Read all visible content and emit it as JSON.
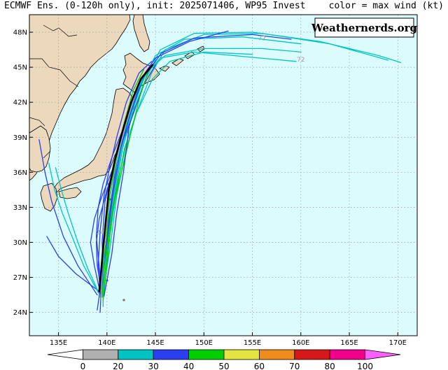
{
  "header": {
    "title": "ECMWF Ens. (0-120h only), init: 2025071406, WP95 Invest",
    "right_note": "color = max wind (kt)"
  },
  "watermark": "Weathernerds.org",
  "map": {
    "lon_range": [
      132,
      172
    ],
    "lat_range": [
      22,
      49.5
    ],
    "ocean_color": "#dcfbfd",
    "land_color": "#ecd8bd",
    "lon_ticks": [
      {
        "value": 135,
        "label": "135E"
      },
      {
        "value": 140,
        "label": "140E"
      },
      {
        "value": 145,
        "label": "145E"
      },
      {
        "value": 150,
        "label": "150E"
      },
      {
        "value": 155,
        "label": "155E"
      },
      {
        "value": 160,
        "label": "160E"
      },
      {
        "value": 165,
        "label": "165E"
      },
      {
        "value": 170,
        "label": "170E"
      }
    ],
    "lat_ticks": [
      {
        "value": 24,
        "label": "24N"
      },
      {
        "value": 27,
        "label": "27N"
      },
      {
        "value": 30,
        "label": "30N"
      },
      {
        "value": 33,
        "label": "33N"
      },
      {
        "value": 36,
        "label": "36N"
      },
      {
        "value": 39,
        "label": "39N"
      },
      {
        "value": 42,
        "label": "42N"
      },
      {
        "value": 45,
        "label": "45N"
      },
      {
        "value": 48,
        "label": "48N"
      }
    ],
    "hour_labels": [
      {
        "text": "72",
        "lon": 156.0,
        "lat": 47.3
      },
      {
        "text": "72",
        "lon": 160.0,
        "lat": 45.5
      },
      {
        "text": "24",
        "lon": 139.3,
        "lat": 30.7
      }
    ]
  },
  "colorbar": {
    "labels": [
      "0",
      "20",
      "30",
      "40",
      "50",
      "60",
      "70",
      "80",
      "100"
    ],
    "colors": [
      "#b0b0b0",
      "#00c4c4",
      "#2a3ff0",
      "#00d000",
      "#e4e440",
      "#f08c1c",
      "#d81818",
      "#f0008c",
      "#ff60ff"
    ]
  },
  "tracks": [
    {
      "color": "#00c4c4",
      "points": [
        [
          139.5,
          25.5
        ],
        [
          140.2,
          30
        ],
        [
          140.8,
          34
        ],
        [
          141.6,
          38
        ],
        [
          142.6,
          41
        ],
        [
          144.0,
          44
        ],
        [
          145.5,
          46.5
        ],
        [
          149,
          47.9
        ],
        [
          155,
          48.0
        ],
        [
          162,
          47.2
        ],
        [
          168,
          46.0
        ],
        [
          170.3,
          45.4
        ]
      ]
    },
    {
      "color": "#00c4c4",
      "points": [
        [
          139.6,
          25.6
        ],
        [
          140.4,
          30
        ],
        [
          141.0,
          34
        ],
        [
          142.0,
          38
        ],
        [
          143.0,
          41
        ],
        [
          144.6,
          44.5
        ],
        [
          146,
          46.5
        ],
        [
          150,
          47.8
        ],
        [
          156,
          47.9
        ],
        [
          163,
          47.0
        ],
        [
          169,
          45.6
        ]
      ]
    },
    {
      "color": "#00c4c4",
      "points": [
        [
          139.3,
          25.3
        ],
        [
          139.9,
          30
        ],
        [
          140.6,
          34
        ],
        [
          141.4,
          38
        ],
        [
          142.4,
          41
        ],
        [
          143.8,
          44
        ],
        [
          145.0,
          46
        ],
        [
          148,
          47.4
        ],
        [
          154,
          47.6
        ],
        [
          160,
          47.0
        ]
      ]
    },
    {
      "color": "#00c4c4",
      "points": [
        [
          139.5,
          25.4
        ],
        [
          140.1,
          30
        ],
        [
          140.7,
          34
        ],
        [
          141.5,
          38
        ],
        [
          142.5,
          41
        ],
        [
          144.0,
          44.5
        ],
        [
          146,
          46.0
        ],
        [
          150,
          46.6
        ],
        [
          156,
          46.6
        ],
        [
          160,
          46.3
        ]
      ]
    },
    {
      "color": "#00c4c4",
      "points": [
        [
          139.4,
          25.5
        ],
        [
          139.9,
          30
        ],
        [
          140.5,
          34
        ],
        [
          141.3,
          38
        ],
        [
          142.3,
          41
        ],
        [
          143.6,
          44
        ],
        [
          145.5,
          45.8
        ],
        [
          149,
          46.3
        ],
        [
          153,
          46.0
        ],
        [
          159.5,
          45.5
        ]
      ]
    },
    {
      "color": "#2a3ff0",
      "points": [
        [
          139.4,
          25.6
        ],
        [
          140.0,
          30
        ],
        [
          140.6,
          34
        ],
        [
          141.4,
          38
        ],
        [
          142.4,
          41
        ],
        [
          143.7,
          44
        ],
        [
          145.6,
          46.2
        ],
        [
          149,
          47.5
        ],
        [
          155,
          47.8
        ],
        [
          159,
          47.4
        ]
      ]
    },
    {
      "color": "#2a3ff0",
      "points": [
        [
          139.3,
          25.6
        ],
        [
          139.9,
          30
        ],
        [
          140.5,
          34
        ],
        [
          141.2,
          38
        ],
        [
          142.2,
          41
        ],
        [
          143.5,
          44
        ],
        [
          145.0,
          45.8
        ],
        [
          148.5,
          47.2
        ],
        [
          152.5,
          48.1
        ]
      ]
    },
    {
      "color": "#00c4c4",
      "points": [
        [
          139.5,
          25.5
        ],
        [
          140.2,
          30
        ],
        [
          140.9,
          34
        ],
        [
          141.8,
          38
        ],
        [
          143.0,
          41
        ],
        [
          144.7,
          44
        ],
        [
          146.5,
          45.5
        ],
        [
          150,
          46.3
        ],
        [
          155,
          46.1
        ]
      ]
    },
    {
      "color": "#2a3ff0",
      "points": [
        [
          139.2,
          25.8
        ],
        [
          136.8,
          27.3
        ],
        [
          135.0,
          28.8
        ],
        [
          133.8,
          30.5
        ]
      ]
    },
    {
      "color": "#2a3ff0",
      "points": [
        [
          139.0,
          25.5
        ],
        [
          137.0,
          28.0
        ],
        [
          135.5,
          30.5
        ],
        [
          134.3,
          33.5
        ],
        [
          133.6,
          36.0
        ],
        [
          133.0,
          38.8
        ]
      ]
    },
    {
      "color": "#00c4c4",
      "points": [
        [
          139.1,
          25.7
        ],
        [
          137.6,
          28.0
        ],
        [
          136.4,
          30.5
        ],
        [
          135.4,
          32.5
        ],
        [
          134.6,
          34.5
        ],
        [
          134.0,
          36.8
        ]
      ]
    },
    {
      "color": "#00c4c4",
      "points": [
        [
          139.2,
          25.6
        ],
        [
          138.0,
          27.8
        ],
        [
          137.0,
          30.0
        ],
        [
          136.0,
          32.5
        ],
        [
          135.3,
          34.5
        ],
        [
          134.7,
          36.4
        ]
      ]
    },
    {
      "color": "#2a3ff0",
      "points": [
        [
          139.3,
          25.7
        ],
        [
          138.7,
          28
        ],
        [
          138.3,
          30
        ],
        [
          138.7,
          32
        ],
        [
          139.5,
          34
        ],
        [
          140.7,
          36.5
        ],
        [
          141.5,
          38.5
        ],
        [
          142.5,
          40.5
        ],
        [
          143.8,
          43.5
        ],
        [
          145.0,
          45.2
        ]
      ]
    },
    {
      "color": "#00d000",
      "points": [
        [
          139.5,
          25.6
        ],
        [
          139.9,
          28
        ],
        [
          140.1,
          30
        ],
        [
          140.4,
          32
        ],
        [
          140.9,
          34
        ],
        [
          141.8,
          37
        ],
        [
          142.5,
          39.5
        ],
        [
          143.4,
          42.5
        ],
        [
          144.2,
          44.5
        ]
      ]
    },
    {
      "color": "#00d000",
      "points": [
        [
          139.6,
          25.0
        ],
        [
          140.0,
          28
        ],
        [
          140.3,
          30.5
        ],
        [
          140.6,
          33
        ],
        [
          141.2,
          35.5
        ],
        [
          142.0,
          38.5
        ]
      ]
    },
    {
      "color": "#2a3ff0",
      "points": [
        [
          139.7,
          25.4
        ],
        [
          140.5,
          29
        ],
        [
          141.0,
          32.5
        ],
        [
          141.7,
          36
        ],
        [
          142.3,
          40
        ]
      ]
    },
    {
      "color": "#2a3ff0",
      "points": [
        [
          139.0,
          24.2
        ],
        [
          139.3,
          26
        ],
        [
          139.6,
          28
        ],
        [
          139.5,
          30
        ],
        [
          139.8,
          33.5
        ],
        [
          140.8,
          37
        ],
        [
          142.0,
          40.5
        ],
        [
          143.3,
          43.3
        ]
      ]
    },
    {
      "color": "#2a3ff0",
      "points": [
        [
          139.5,
          25.5
        ],
        [
          139.0,
          28
        ],
        [
          138.9,
          30
        ],
        [
          139.2,
          32
        ],
        [
          140.0,
          34.5
        ],
        [
          140.8,
          36.5
        ],
        [
          141.6,
          39
        ]
      ]
    },
    {
      "color": "#2a3ff0",
      "points": [
        [
          139.3,
          24.0
        ],
        [
          139.4,
          26
        ],
        [
          139.2,
          28
        ],
        [
          138.9,
          30.5
        ],
        [
          139.1,
          33
        ],
        [
          139.6,
          35
        ],
        [
          140.6,
          37.5
        ],
        [
          141.8,
          40
        ],
        [
          142.8,
          42.5
        ],
        [
          144.3,
          44.8
        ]
      ]
    },
    {
      "color": "#00c4c4",
      "points": [
        [
          139.6,
          24.5
        ],
        [
          139.6,
          27
        ],
        [
          139.7,
          29.5
        ],
        [
          140.0,
          32
        ],
        [
          140.4,
          34.5
        ],
        [
          141.1,
          37.5
        ],
        [
          142.0,
          40.5
        ],
        [
          143.1,
          43
        ],
        [
          144.1,
          44.5
        ]
      ]
    },
    {
      "color": "#b0b0b0",
      "points": [
        [
          139.4,
          25.0
        ],
        [
          139.5,
          28
        ],
        [
          139.9,
          31
        ],
        [
          140.3,
          34
        ],
        [
          141.0,
          37
        ],
        [
          141.9,
          40
        ],
        [
          142.9,
          42.6
        ]
      ]
    },
    {
      "color": "#00d000",
      "points": [
        [
          139.5,
          25.3
        ],
        [
          139.7,
          28
        ],
        [
          140.0,
          31
        ],
        [
          140.3,
          34
        ],
        [
          140.9,
          37
        ],
        [
          141.7,
          40
        ],
        [
          142.7,
          43
        ],
        [
          143.8,
          44.8
        ]
      ]
    },
    {
      "color": "#2a3ff0",
      "points": [
        [
          139.3,
          25.8
        ],
        [
          139.1,
          28
        ],
        [
          139.3,
          31
        ],
        [
          139.7,
          34
        ],
        [
          140.3,
          36.5
        ],
        [
          141.0,
          39
        ],
        [
          142.0,
          42
        ],
        [
          143.3,
          44.5
        ],
        [
          144.6,
          45.5
        ]
      ]
    },
    {
      "color": "#000000",
      "points": [
        [
          139.2,
          25.8
        ],
        [
          139.4,
          27.5
        ],
        [
          139.6,
          29.5
        ],
        [
          139.9,
          32
        ],
        [
          140.2,
          34.5
        ],
        [
          140.8,
          37
        ],
        [
          141.6,
          39.5
        ],
        [
          142.5,
          42
        ],
        [
          143.5,
          44
        ],
        [
          144.7,
          45.2
        ]
      ],
      "width": 2.6
    }
  ]
}
